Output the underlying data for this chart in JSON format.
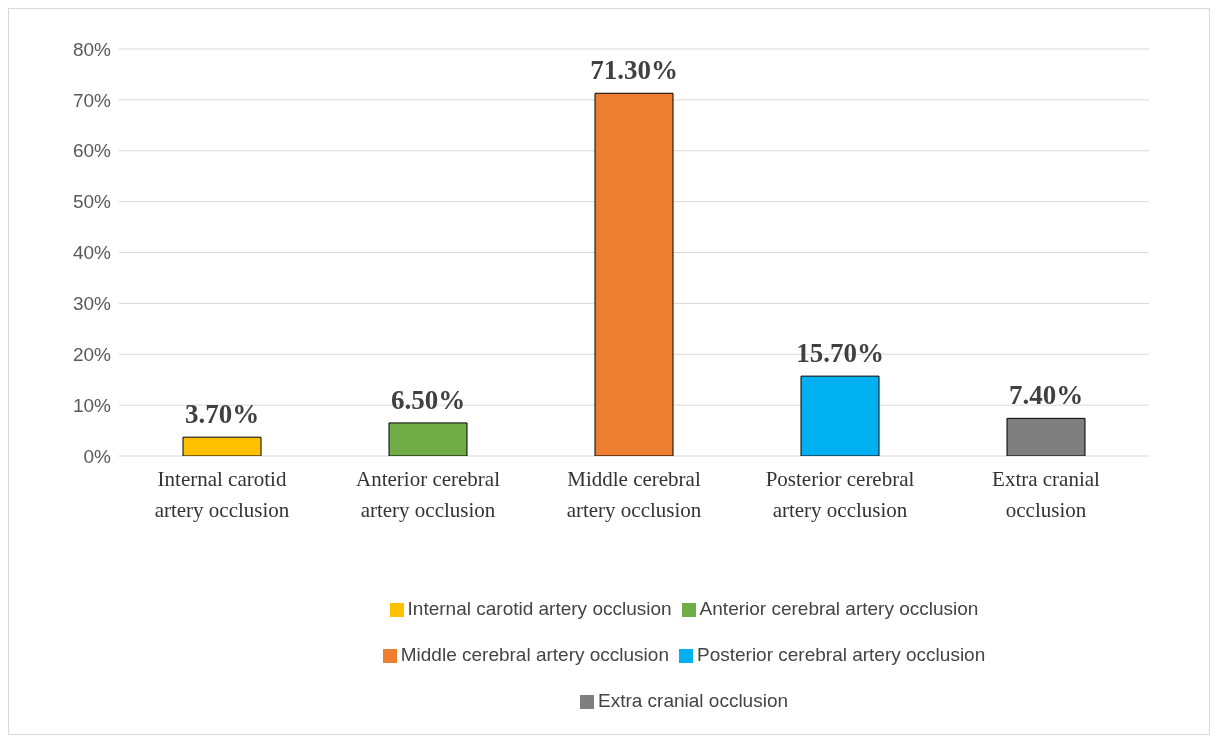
{
  "chart_data": {
    "type": "bar",
    "stacked": true,
    "categories": [
      "Internal carotid artery occlusion",
      "Anterior cerebral artery occlusion",
      "Middle cerebral artery occlusion",
      "Posterior cerebral artery occlusion",
      "Extra cranial occlusion"
    ],
    "series": [
      {
        "name": "Internal carotid artery occlusion",
        "color": "#ffc000",
        "values": [
          3.7,
          null,
          null,
          null,
          null
        ],
        "value_labels": [
          "3.70%",
          null,
          null,
          null,
          null
        ]
      },
      {
        "name": "Anterior cerebral artery occlusion",
        "color": "#70ad47",
        "values": [
          null,
          6.5,
          null,
          null,
          null
        ],
        "value_labels": [
          null,
          "6.50%",
          null,
          null,
          null
        ]
      },
      {
        "name": "Middle cerebral artery occlusion",
        "color": "#ed7d31",
        "values": [
          null,
          null,
          71.3,
          null,
          null
        ],
        "value_labels": [
          null,
          null,
          "71.30%",
          null,
          null
        ]
      },
      {
        "name": "Posterior cerebral artery occlusion",
        "color": "#00b0f0",
        "values": [
          null,
          null,
          null,
          15.7,
          null
        ],
        "value_labels": [
          null,
          null,
          null,
          "15.70%",
          null
        ]
      },
      {
        "name": "Extra cranial occlusion",
        "color": "#7f7f7f",
        "values": [
          null,
          null,
          null,
          null,
          7.4
        ],
        "value_labels": [
          null,
          null,
          null,
          null,
          "7.40%"
        ]
      }
    ],
    "ylim": [
      0,
      80
    ],
    "yticks": [
      {
        "value": 0,
        "label": "0%"
      },
      {
        "value": 10,
        "label": "10%"
      },
      {
        "value": 20,
        "label": "20%"
      },
      {
        "value": 30,
        "label": "30%"
      },
      {
        "value": 40,
        "label": "40%"
      },
      {
        "value": 50,
        "label": "50%"
      },
      {
        "value": 60,
        "label": "60%"
      },
      {
        "value": 70,
        "label": "70%"
      },
      {
        "value": 80,
        "label": "80%"
      }
    ],
    "grid": "y",
    "legend": "bottom"
  }
}
